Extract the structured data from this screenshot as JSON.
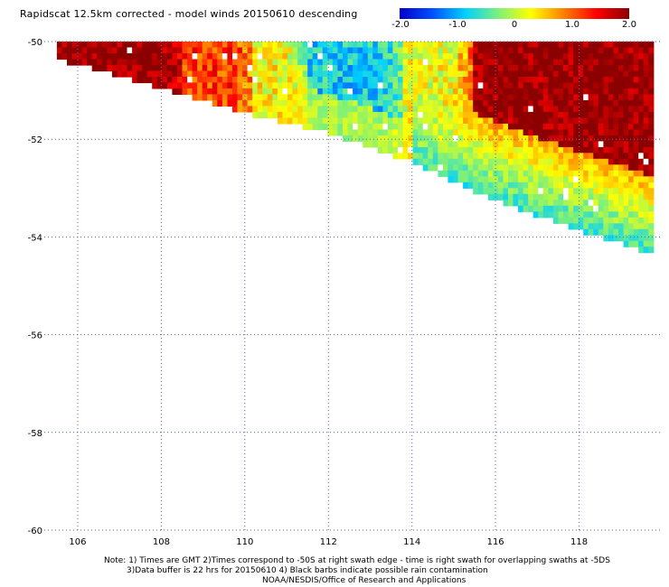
{
  "title": "Rapidscat 12.5km corrected - model winds 20150610 descending",
  "colorbar": {
    "labels": [
      "-2.0",
      "-1.0",
      "0",
      "1.0",
      "2.0"
    ],
    "min": -2.0,
    "max": 2.0,
    "colors": [
      "#0000c8",
      "#0050ff",
      "#00d0ff",
      "#7cf07c",
      "#ffff00",
      "#ff8000",
      "#ff0000",
      "#8b0000"
    ]
  },
  "chart_data": {
    "type": "heatmap",
    "title": "Rapidscat 12.5km corrected - model winds 20150610 descending",
    "x_ticks": [
      "106",
      "108",
      "110",
      "112",
      "114",
      "116",
      "118"
    ],
    "y_ticks": [
      "-50",
      "-52",
      "-54",
      "-56",
      "-58",
      "-60"
    ],
    "x_range": [
      105.2,
      120
    ],
    "y_range": [
      -60,
      -50
    ],
    "grid": true,
    "swath": {
      "description_units": "longitude/latitude",
      "lower_edge": [
        [
          105.5,
          -50.3
        ],
        [
          106.5,
          -50.5
        ],
        [
          108,
          -50.9
        ],
        [
          110,
          -51.4
        ],
        [
          112,
          -51.8
        ],
        [
          114,
          -52.4
        ],
        [
          116,
          -53.2
        ],
        [
          118,
          -53.8
        ],
        [
          119.8,
          -54.3
        ]
      ],
      "zones": [
        {
          "lon": [
            105.5,
            108.5
          ],
          "value": 2.0
        },
        {
          "lon": [
            108.5,
            110.2
          ],
          "value": 1.2
        },
        {
          "lon": [
            110.2,
            111.5
          ],
          "value": 0.3
        },
        {
          "lon": [
            111.5,
            113.8
          ],
          "value": -0.8
        },
        {
          "lon": [
            113.8,
            115.5
          ],
          "value": 0.2
        },
        {
          "lon": [
            115.5,
            119.8
          ],
          "value": 2.0
        }
      ]
    }
  },
  "notes": [
    "Note: 1) Times are GMT 2)Times correspond to -50S at right swath edge - time is right swath for overlapping swaths at -5DS",
    "3)Data buffer is 22 hrs for 20150610 4) Black barbs indicate possible rain contamination",
    "NOAA/NESDIS/Office of Research and Applications"
  ]
}
